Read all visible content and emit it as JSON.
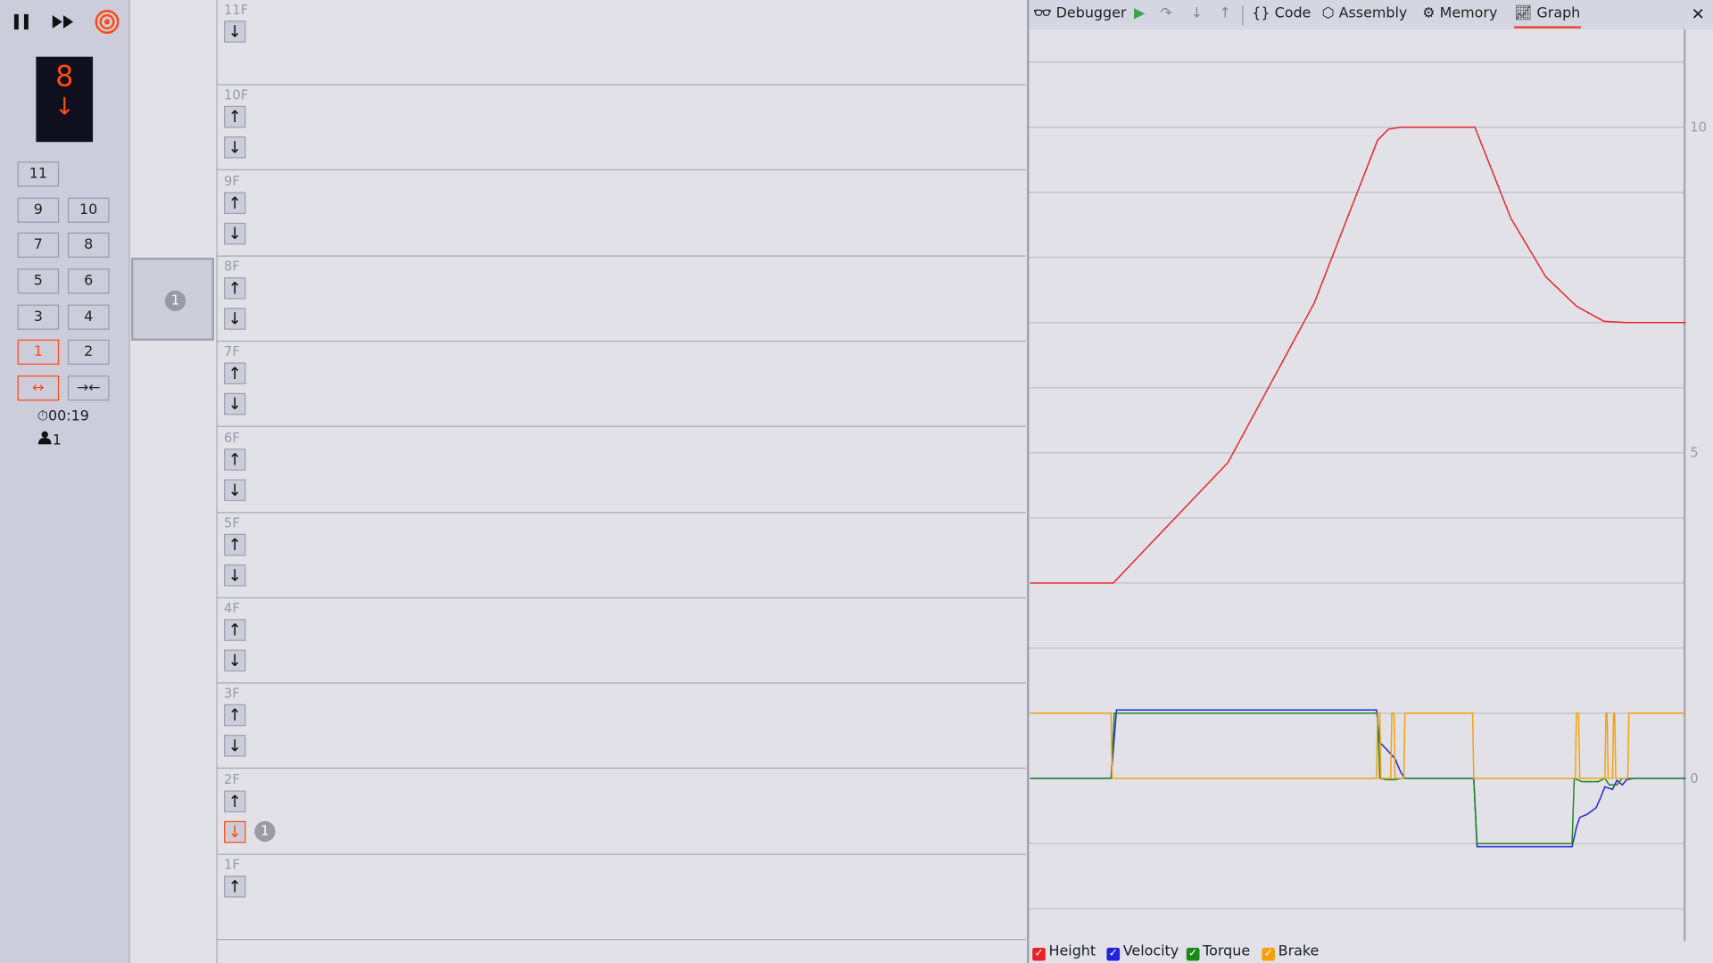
{
  "controls": {
    "pause_icon": "pause-icon",
    "fast_forward_icon": "fast-forward-icon",
    "target_icon": "target-icon"
  },
  "display": {
    "floor": "8",
    "direction": "↓"
  },
  "car_buttons": [
    {
      "label": "11",
      "active": false
    },
    {
      "label": "9",
      "active": false
    },
    {
      "label": "10",
      "active": false
    },
    {
      "label": "7",
      "active": false
    },
    {
      "label": "8",
      "active": false
    },
    {
      "label": "5",
      "active": false
    },
    {
      "label": "6",
      "active": false
    },
    {
      "label": "3",
      "active": false
    },
    {
      "label": "4",
      "active": false
    },
    {
      "label": "1",
      "active": true
    },
    {
      "label": "2",
      "active": false
    }
  ],
  "door_buttons": {
    "open": "↔",
    "close": "→←"
  },
  "status": {
    "timer": "00:19",
    "passengers": "1"
  },
  "car": {
    "passengers": "1",
    "floor": "8F"
  },
  "floors": [
    {
      "label": "11F",
      "up": false,
      "down": true
    },
    {
      "label": "10F",
      "up": true,
      "down": true
    },
    {
      "label": "9F",
      "up": true,
      "down": true
    },
    {
      "label": "8F",
      "up": true,
      "down": true
    },
    {
      "label": "7F",
      "up": true,
      "down": true
    },
    {
      "label": "6F",
      "up": true,
      "down": true
    },
    {
      "label": "5F",
      "up": true,
      "down": true
    },
    {
      "label": "4F",
      "up": true,
      "down": true
    },
    {
      "label": "3F",
      "up": true,
      "down": true
    },
    {
      "label": "2F",
      "up": true,
      "down": true,
      "down_lit": true,
      "waiting": "1"
    },
    {
      "label": "1F",
      "up": true,
      "down": false
    }
  ],
  "toolbar": {
    "debugger": "Debugger",
    "code": "Code",
    "assembly": "Assembly",
    "memory": "Memory",
    "graph": "Graph",
    "active_tab": "Graph"
  },
  "chart_data": {
    "type": "line",
    "ylim": [
      -2.5,
      11.5
    ],
    "yticks": [
      "10",
      "5",
      "0"
    ],
    "grid": true,
    "legend_position": "bottom",
    "series": [
      {
        "name": "Height",
        "color": "#e8222a",
        "points": [
          [
            0,
            3
          ],
          [
            76,
            3
          ],
          [
            181,
            4.85
          ],
          [
            260,
            7.3
          ],
          [
            318,
            9.8
          ],
          [
            328,
            9.97
          ],
          [
            340,
            10
          ],
          [
            407,
            10
          ],
          [
            440,
            8.6
          ],
          [
            472,
            7.7
          ],
          [
            500,
            7.25
          ],
          [
            525,
            7.02
          ],
          [
            545,
            7
          ],
          [
            600,
            7
          ]
        ]
      },
      {
        "name": "Velocity",
        "color": "#2222dd",
        "points": [
          [
            0,
            0
          ],
          [
            74,
            0
          ],
          [
            79,
            1.05
          ],
          [
            317,
            1.05
          ],
          [
            320,
            0.55
          ],
          [
            326,
            0.45
          ],
          [
            334,
            0.3
          ],
          [
            339,
            0.1
          ],
          [
            343,
            0
          ],
          [
            406,
            0
          ],
          [
            409,
            -1.05
          ],
          [
            496,
            -1.05
          ],
          [
            500,
            -0.75
          ],
          [
            503,
            -0.6
          ],
          [
            510,
            -0.55
          ],
          [
            518,
            -0.45
          ],
          [
            522,
            -0.3
          ],
          [
            526,
            -0.13
          ],
          [
            533,
            -0.17
          ],
          [
            537,
            -0.03
          ],
          [
            542,
            -0.1
          ],
          [
            546,
            -0.02
          ],
          [
            552,
            0
          ],
          [
            600,
            0
          ]
        ]
      },
      {
        "name": "Torque",
        "color": "#1a8a1a",
        "points": [
          [
            0,
            0
          ],
          [
            74,
            0
          ],
          [
            77,
            1
          ],
          [
            318,
            1
          ],
          [
            320,
            0
          ],
          [
            326,
            -0.02
          ],
          [
            334,
            -0.02
          ],
          [
            340,
            0
          ],
          [
            406,
            0
          ],
          [
            409,
            -1
          ],
          [
            496,
            -1
          ],
          [
            498,
            0
          ],
          [
            505,
            -0.05
          ],
          [
            520,
            -0.05
          ],
          [
            526,
            0
          ],
          [
            530,
            -0.1
          ],
          [
            537,
            -0.1
          ],
          [
            542,
            0
          ],
          [
            600,
            0
          ]
        ]
      },
      {
        "name": "Brake",
        "color": "#f5a10a",
        "points": [
          [
            0,
            1
          ],
          [
            74,
            1
          ],
          [
            75,
            0
          ],
          [
            317,
            0
          ],
          [
            318,
            1
          ],
          [
            320,
            1
          ],
          [
            321,
            0
          ],
          [
            330,
            0
          ],
          [
            331,
            1
          ],
          [
            333,
            1
          ],
          [
            334,
            0
          ],
          [
            342,
            0
          ],
          [
            343,
            1
          ],
          [
            405,
            1
          ],
          [
            406,
            0
          ],
          [
            499,
            0
          ],
          [
            500,
            1
          ],
          [
            502,
            1
          ],
          [
            503,
            0
          ],
          [
            526,
            0
          ],
          [
            527,
            1
          ],
          [
            528,
            1
          ],
          [
            529,
            0
          ],
          [
            533,
            0
          ],
          [
            534,
            1
          ],
          [
            535,
            1
          ],
          [
            536,
            0
          ],
          [
            547,
            0
          ],
          [
            548,
            1
          ],
          [
            600,
            1
          ]
        ]
      }
    ]
  },
  "legend": [
    {
      "label": "Height",
      "color": "#e8222a"
    },
    {
      "label": "Velocity",
      "color": "#2222dd"
    },
    {
      "label": "Torque",
      "color": "#1a8a1a"
    },
    {
      "label": "Brake",
      "color": "#f5a10a"
    }
  ]
}
